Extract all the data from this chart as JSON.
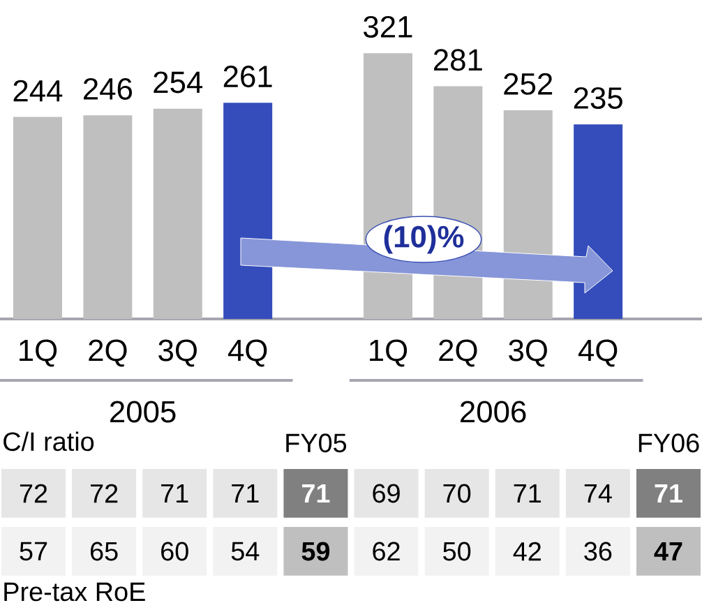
{
  "chart_data": [
    {
      "type": "bar",
      "categories": [
        "1Q",
        "2Q",
        "3Q",
        "4Q",
        "1Q",
        "2Q",
        "3Q",
        "4Q"
      ],
      "values": [
        244,
        246,
        254,
        261,
        321,
        281,
        252,
        235
      ],
      "colors": [
        "#bfbfbf",
        "#bfbfbf",
        "#bfbfbf",
        "#344dbb",
        "#bfbfbf",
        "#bfbfbf",
        "#bfbfbf",
        "#344dbb"
      ],
      "data_labels": true,
      "annotations": [
        "2005",
        "2006",
        "(10)%"
      ]
    },
    {
      "type": "heatmap",
      "categories": [
        null,
        null,
        null,
        null,
        "FY05",
        null,
        null,
        null,
        null,
        "FY06"
      ],
      "y_categories": [
        "C/I ratio",
        "Pre-tax RoE"
      ],
      "data_labels": true,
      "cells": [
        [
          72,
          72,
          71,
          71,
          71,
          69,
          70,
          71,
          74,
          71
        ],
        [
          57,
          65,
          60,
          54,
          59,
          62,
          50,
          42,
          36,
          47
        ]
      ],
      "colors": [
        [
          "#e6e6e6",
          "#e6e6e6",
          "#e6e6e6",
          "#e6e6e6",
          "#808080",
          "#e6e6e6",
          "#e6e6e6",
          "#e6e6e6",
          "#e6e6e6",
          "#808080"
        ],
        [
          "#f2f2f2",
          "#f2f2f2",
          "#f2f2f2",
          "#f2f2f2",
          "#bfbfbf",
          "#f2f2f2",
          "#f2f2f2",
          "#f2f2f2",
          "#f2f2f2",
          "#bfbfbf"
        ]
      ]
    }
  ]
}
